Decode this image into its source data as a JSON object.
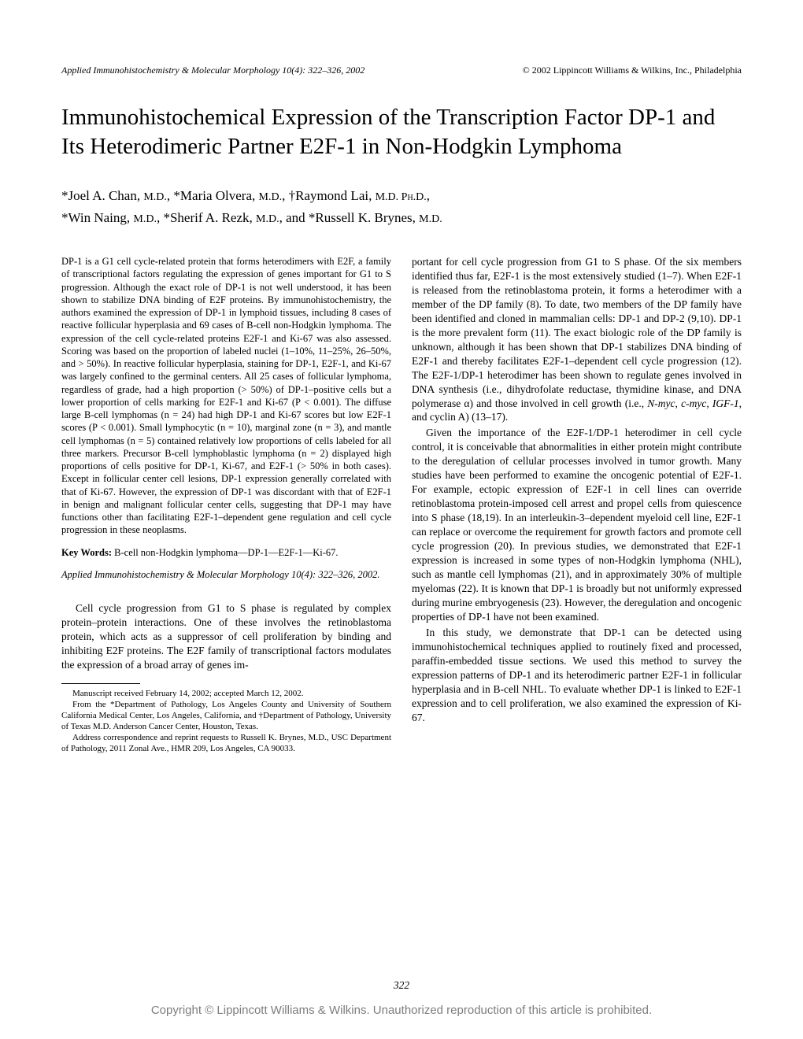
{
  "header": {
    "journal_line": "Applied Immunohistochemistry & Molecular Morphology 10(4): 322–326, 2002",
    "publisher_line": "© 2002 Lippincott Williams & Wilkins, Inc., Philadelphia"
  },
  "title": "Immunohistochemical Expression of the Transcription Factor DP-1 and Its Heterodimeric Partner E2F-1 in Non-Hodgkin Lymphoma",
  "authors_line1": "*Joel A. Chan, M.D., *Maria Olvera, M.D., †Raymond Lai, M.D. Ph.D.,",
  "authors_line2": "*Win Naing, M.D., *Sherif A. Rezk, M.D., and *Russell K. Brynes, M.D.",
  "abstract_text": "DP-1 is a G1 cell cycle-related protein that forms heterodimers with E2F, a family of transcriptional factors regulating the expression of genes important for G1 to S progression. Although the exact role of DP-1 is not well understood, it has been shown to stabilize DNA binding of E2F proteins. By immunohistochemistry, the authors examined the expression of DP-1 in lymphoid tissues, including 8 cases of reactive follicular hyperplasia and 69 cases of B-cell non-Hodgkin lymphoma. The expression of the cell cycle-related proteins E2F-1 and Ki-67 was also assessed. Scoring was based on the proportion of labeled nuclei (1–10%, 11–25%, 26–50%, and > 50%). In reactive follicular hyperplasia, staining for DP-1, E2F-1, and Ki-67 was largely confined to the germinal centers. All 25 cases of follicular lymphoma, regardless of grade, had a high proportion (> 50%) of DP-1–positive cells but a lower proportion of cells marking for E2F-1 and Ki-67 (P < 0.001). The diffuse large B-cell lymphomas (n = 24) had high DP-1 and Ki-67 scores but low E2F-1 scores (P < 0.001). Small lymphocytic (n = 10), marginal zone (n = 3), and mantle cell lymphomas (n = 5) contained relatively low proportions of cells labeled for all three markers. Precursor B-cell lymphoblastic lymphoma (n = 2) displayed high proportions of cells positive for DP-1, Ki-67, and E2F-1 (> 50% in both cases). Except in follicular center cell lesions, DP-1 expression generally correlated with that of Ki-67. However, the expression of DP-1 was discordant with that of E2F-1 in benign and malignant follicular center cells, suggesting that DP-1 may have functions other than facilitating E2F-1–dependent gene regulation and cell cycle progression in these neoplasms.",
  "keywords_label": "Key Words:",
  "keywords_text": " B-cell non-Hodgkin lymphoma—DP-1—E2F-1—Ki-67.",
  "citation": "Applied Immunohistochemistry & Molecular Morphology 10(4): 322–326, 2002.",
  "body_p1": "Cell cycle progression from G1 to S phase is regulated by complex protein–protein interactions. One of these involves the retinoblastoma protein, which acts as a suppressor of cell proliferation by binding and inhibiting E2F proteins. The E2F family of transcriptional factors modulates the expression of a broad array of genes im-",
  "body_r1a": "portant for cell cycle progression from G1 to S phase. Of the six members identified thus far, E2F-1 is the most extensively studied (1–7). When E2F-1 is released from the retinoblastoma protein, it forms a heterodimer with a member of the DP family (8). To date, two members of the DP family have been identified and cloned in mammalian cells: DP-1 and DP-2 (9,10). DP-1 is the more prevalent form (11). The exact biologic role of the DP family is unknown, although it has been shown that DP-1 stabilizes DNA binding of E2F-1 and thereby facilitates E2F-1–dependent cell cycle progression (12). The E2F-1/DP-1 heterodimer has been shown to regulate genes involved in DNA synthesis (i.e., dihydrofolate reductase, thymidine kinase, and DNA polymerase α) and those involved in cell growth (i.e., ",
  "body_r1b": "N-myc",
  "body_r1c": ", ",
  "body_r1d": "c-myc",
  "body_r1e": ", ",
  "body_r1f": "IGF-1",
  "body_r1g": ", and cyclin A) (13–17).",
  "body_r2": "Given the importance of the E2F-1/DP-1 heterodimer in cell cycle control, it is conceivable that abnormalities in either protein might contribute to the deregulation of cellular processes involved in tumor growth. Many studies have been performed to examine the oncogenic potential of E2F-1. For example, ectopic expression of E2F-1 in cell lines can override retinoblastoma protein-imposed cell arrest and propel cells from quiescence into S phase (18,19). In an interleukin-3–dependent myeloid cell line, E2F-1 can replace or overcome the requirement for growth factors and promote cell cycle progression (20). In previous studies, we demonstrated that E2F-1 expression is increased in some types of non-Hodgkin lymphoma (NHL), such as mantle cell lymphomas (21), and in approximately 30% of multiple myelomas (22). It is known that DP-1 is broadly but not uniformly expressed during murine embryogenesis (23). However, the deregulation and oncogenic properties of DP-1 have not been examined.",
  "body_r3": "In this study, we demonstrate that DP-1 can be detected using immunohistochemical techniques applied to routinely fixed and processed, paraffin-embedded tissue sections. We used this method to survey the expression patterns of DP-1 and its heterodimeric partner E2F-1 in follicular hyperplasia and in B-cell NHL. To evaluate whether DP-1 is linked to E2F-1 expression and to cell proliferation, we also examined the expression of Ki-67.",
  "footnote1": "Manuscript received February 14, 2002; accepted March 12, 2002.",
  "footnote2": "From the *Department of Pathology, Los Angeles County and University of Southern California Medical Center, Los Angeles, California, and †Department of Pathology, University of Texas M.D. Anderson Cancer Center, Houston, Texas.",
  "footnote3": "Address correspondence and reprint requests to Russell K. Brynes, M.D., USC Department of Pathology, 2011 Zonal Ave., HMR 209, Los Angeles, CA 90033.",
  "page_number": "322",
  "copyright_footer": "Copyright © Lippincott Williams & Wilkins. Unauthorized reproduction of this article is prohibited."
}
